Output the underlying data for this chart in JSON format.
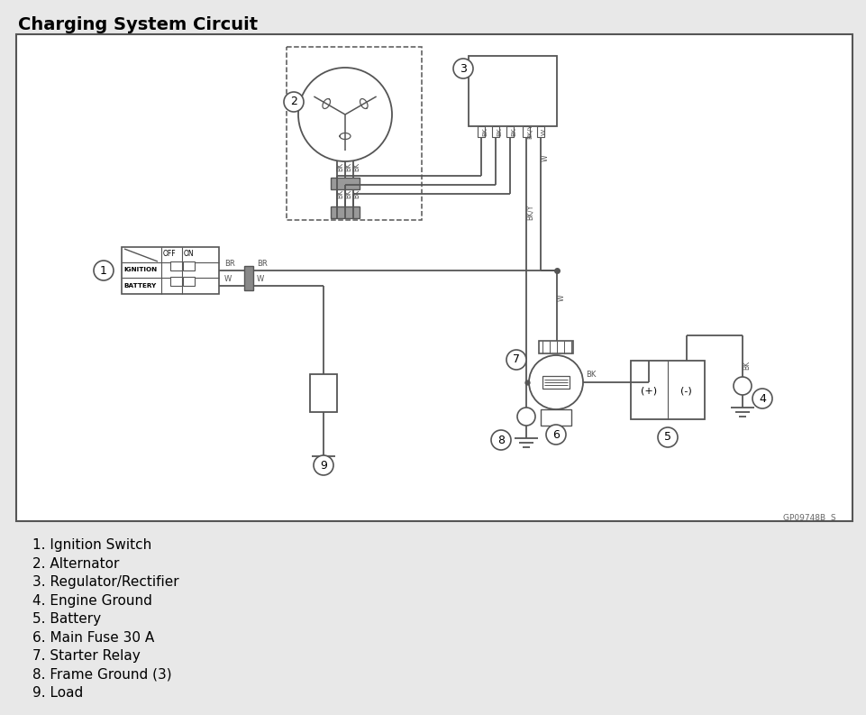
{
  "title": "Charging System Circuit",
  "bg_color": "#e8e8e8",
  "box_bg": "#f0f0f0",
  "lc": "#555555",
  "legend": [
    "1. Ignition Switch",
    "2. Alternator",
    "3. Regulator/Rectifier",
    "4. Engine Ground",
    "5. Battery",
    "6. Main Fuse 30 A",
    "7. Starter Relay",
    "8. Frame Ground (3)",
    "9. Load"
  ],
  "watermark": "GP09748B  S",
  "title_fontsize": 14,
  "legend_fontsize": 11
}
